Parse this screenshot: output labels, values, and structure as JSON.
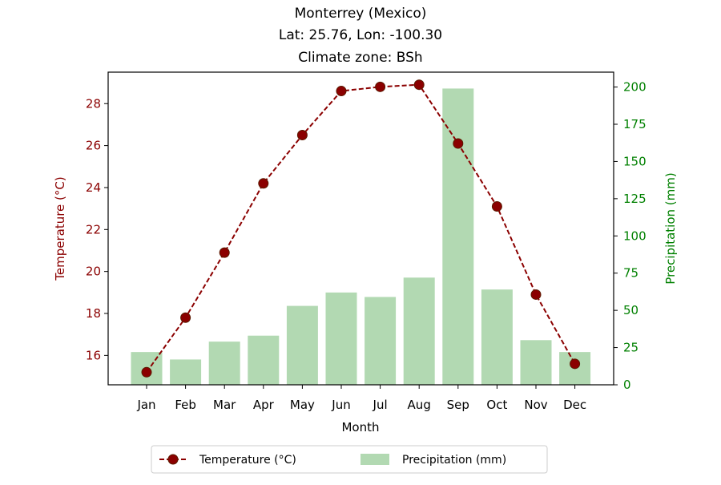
{
  "chart_data": {
    "type": "bar",
    "title_lines": [
      "Monterrey (Mexico)",
      "Lat: 25.76, Lon: -100.30",
      "Climate zone: BSh"
    ],
    "xlabel": "Month",
    "ylabel_left": "Temperature (°C)",
    "ylabel_right": "Precipitation (mm)",
    "categories": [
      "Jan",
      "Feb",
      "Mar",
      "Apr",
      "May",
      "Jun",
      "Jul",
      "Aug",
      "Sep",
      "Oct",
      "Nov",
      "Dec"
    ],
    "series": [
      {
        "name": "Temperature (°C)",
        "type": "line",
        "axis": "left",
        "values": [
          15.2,
          17.8,
          20.9,
          24.2,
          26.5,
          28.6,
          28.8,
          28.9,
          26.1,
          23.1,
          18.9,
          15.6
        ]
      },
      {
        "name": "Precipitation (mm)",
        "type": "bar",
        "axis": "right",
        "values": [
          22,
          17,
          29,
          33,
          53,
          62,
          59,
          72,
          199,
          64,
          30,
          22
        ]
      }
    ],
    "ylim_left": [
      14.6,
      29.5
    ],
    "ylim_right": [
      0,
      210
    ],
    "yticks_left": [
      16,
      18,
      20,
      22,
      24,
      26,
      28
    ],
    "yticks_right": [
      0,
      25,
      50,
      75,
      100,
      125,
      150,
      175,
      200
    ],
    "grid": false,
    "legend_position": "bottom-center"
  },
  "colors": {
    "temperature": "#8b0000",
    "temperature_axis": "#8b0000",
    "precipitation_bar": "#b2d9b2",
    "precipitation_axis": "#008000",
    "axes": "#000000"
  }
}
